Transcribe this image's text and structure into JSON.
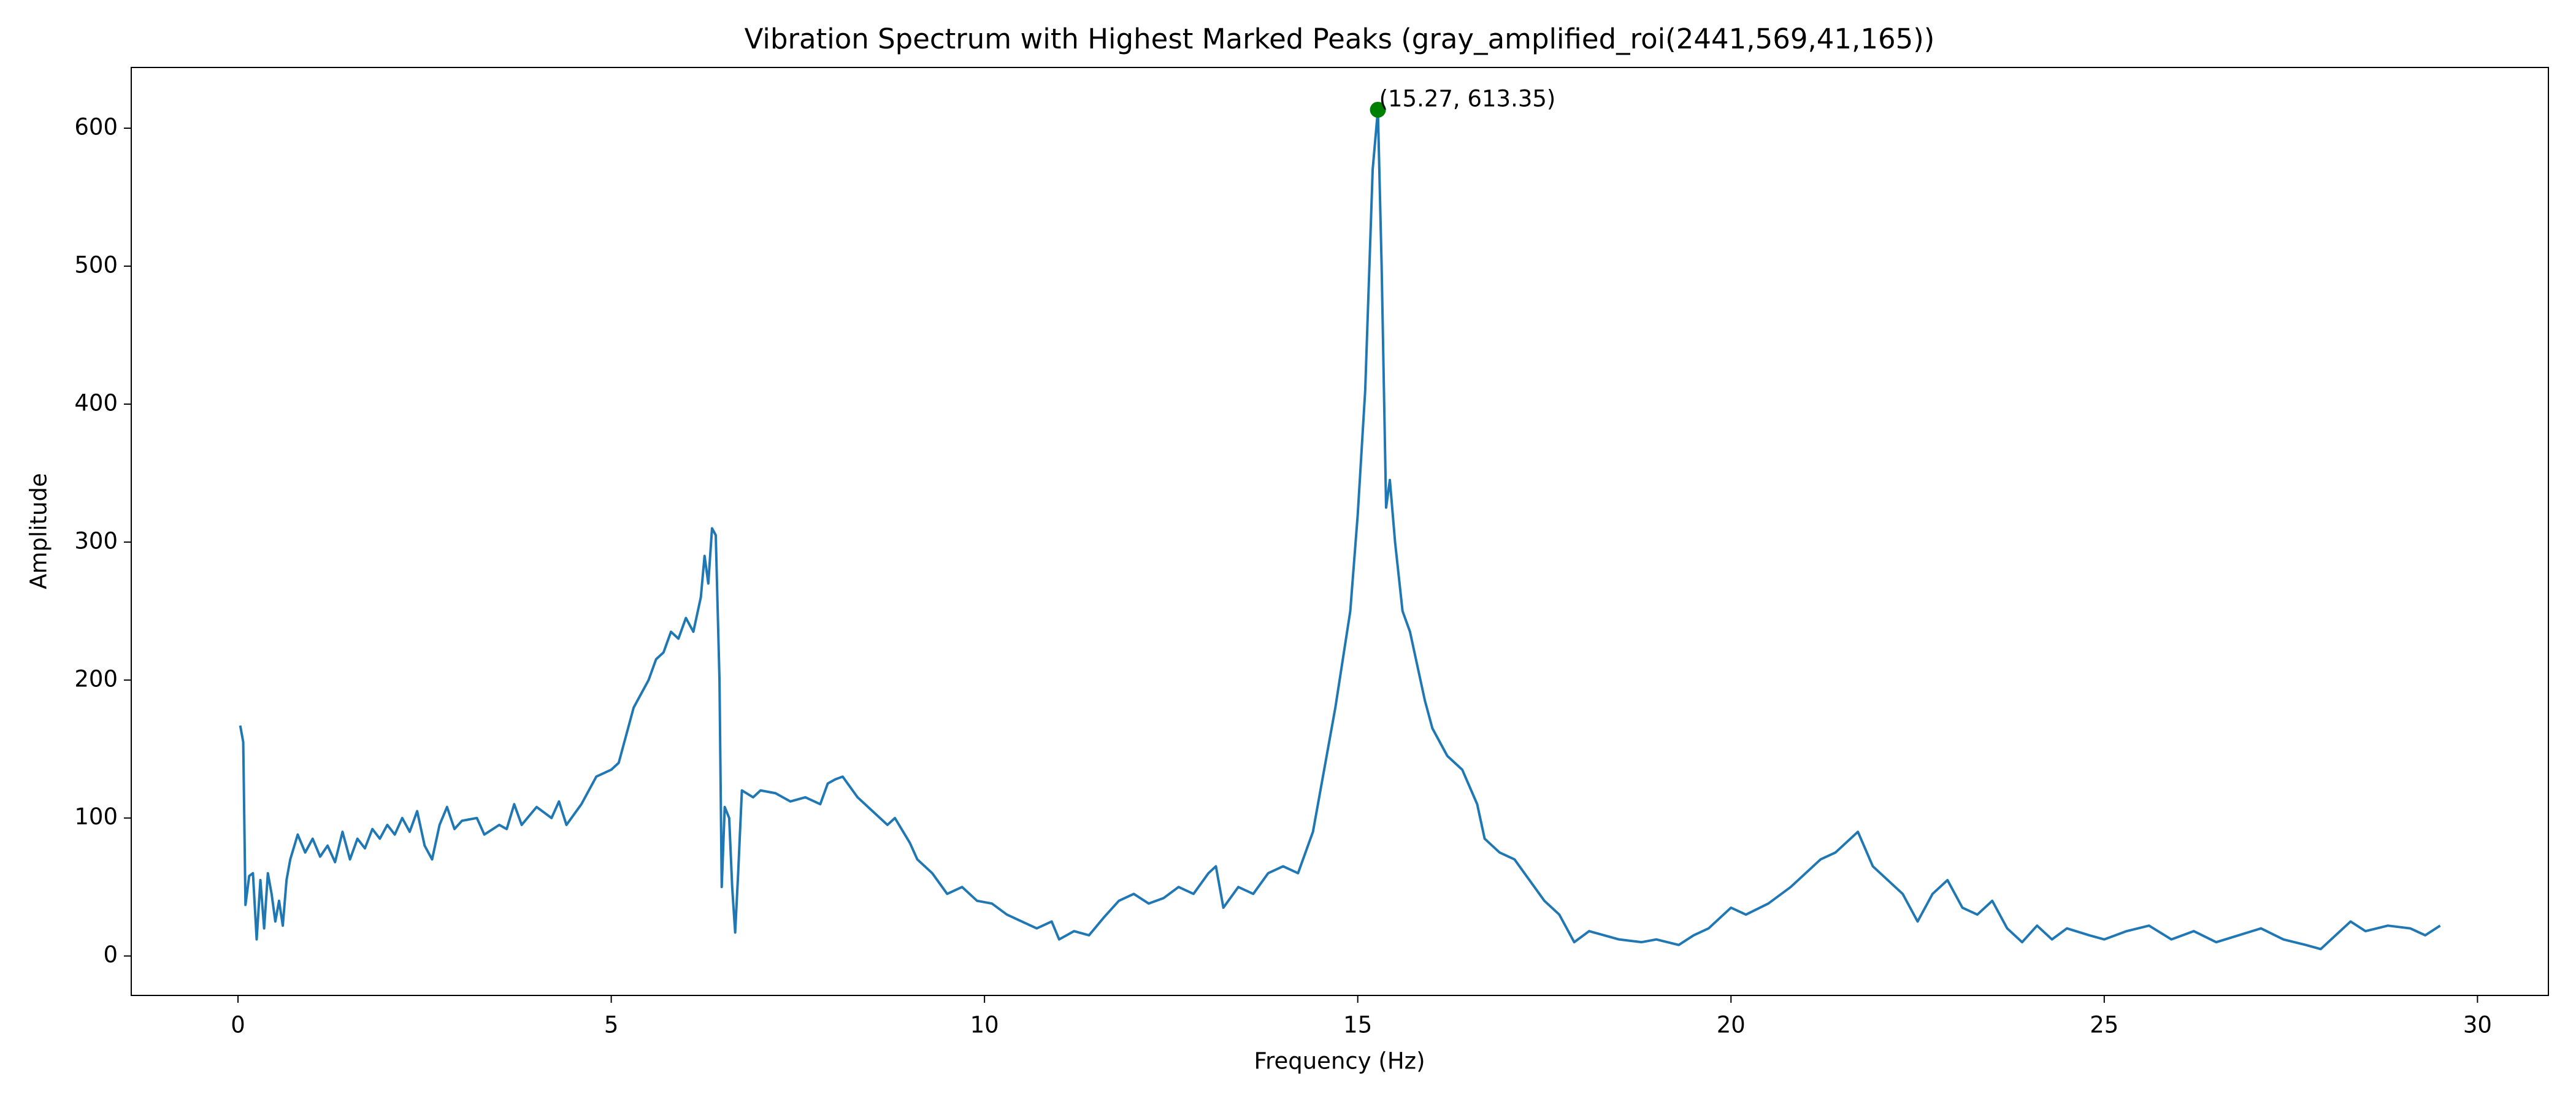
{
  "chart_data": {
    "type": "line",
    "title": "Vibration Spectrum with Highest Marked Peaks (gray_amplified_roi(2441,569,41,165))",
    "xlabel": "Frequency (Hz)",
    "ylabel": "Amplitude",
    "xlim": [
      -1.43,
      30.95
    ],
    "ylim": [
      -28.6,
      644
    ],
    "xticks": [
      0,
      5,
      10,
      15,
      20,
      25,
      30
    ],
    "yticks": [
      0,
      100,
      200,
      300,
      400,
      500,
      600
    ],
    "series": [
      {
        "color": "#1f77b4",
        "x": [
          0.03,
          0.07,
          0.1,
          0.15,
          0.2,
          0.25,
          0.3,
          0.35,
          0.4,
          0.45,
          0.5,
          0.55,
          0.6,
          0.65,
          0.7,
          0.8,
          0.9,
          1.0,
          1.1,
          1.2,
          1.3,
          1.4,
          1.5,
          1.6,
          1.7,
          1.8,
          1.9,
          2.0,
          2.1,
          2.2,
          2.3,
          2.4,
          2.5,
          2.6,
          2.7,
          2.8,
          2.9,
          3.0,
          3.2,
          3.3,
          3.5,
          3.6,
          3.7,
          3.8,
          4.0,
          4.2,
          4.3,
          4.4,
          4.6,
          4.7,
          4.8,
          5.0,
          5.1,
          5.2,
          5.3,
          5.4,
          5.5,
          5.6,
          5.7,
          5.8,
          5.9,
          6.0,
          6.1,
          6.2,
          6.25,
          6.3,
          6.35,
          6.4,
          6.45,
          6.48,
          6.52,
          6.58,
          6.62,
          6.66,
          6.7,
          6.75,
          6.9,
          7.0,
          7.2,
          7.4,
          7.6,
          7.8,
          7.9,
          8.0,
          8.1,
          8.3,
          8.5,
          8.7,
          8.8,
          9.0,
          9.1,
          9.3,
          9.5,
          9.7,
          9.9,
          10.1,
          10.3,
          10.5,
          10.7,
          10.9,
          11.0,
          11.2,
          11.4,
          11.6,
          11.8,
          12.0,
          12.2,
          12.4,
          12.6,
          12.8,
          13.0,
          13.1,
          13.2,
          13.4,
          13.6,
          13.8,
          14.0,
          14.2,
          14.3,
          14.4,
          14.5,
          14.6,
          14.7,
          14.8,
          14.9,
          15.0,
          15.1,
          15.2,
          15.27,
          15.32,
          15.38,
          15.43,
          15.5,
          15.6,
          15.7,
          15.8,
          15.9,
          16.0,
          16.2,
          16.4,
          16.6,
          16.7,
          16.9,
          17.1,
          17.3,
          17.5,
          17.7,
          17.9,
          18.1,
          18.3,
          18.5,
          18.8,
          19.0,
          19.3,
          19.5,
          19.7,
          20.0,
          20.2,
          20.5,
          20.8,
          21.0,
          21.2,
          21.4,
          21.6,
          21.7,
          21.9,
          22.1,
          22.3,
          22.5,
          22.7,
          22.9,
          23.1,
          23.3,
          23.5,
          23.7,
          23.9,
          24.1,
          24.3,
          24.5,
          24.8,
          25.0,
          25.3,
          25.6,
          25.9,
          26.2,
          26.5,
          26.8,
          27.1,
          27.4,
          27.7,
          27.9,
          28.1,
          28.3,
          28.5,
          28.8,
          29.1,
          29.3,
          29.5
        ],
        "values": [
          167,
          155,
          37,
          58,
          60,
          12,
          55,
          20,
          60,
          45,
          25,
          40,
          22,
          55,
          70,
          88,
          75,
          85,
          72,
          80,
          68,
          90,
          70,
          85,
          78,
          92,
          85,
          95,
          88,
          100,
          90,
          105,
          80,
          70,
          95,
          108,
          92,
          98,
          100,
          88,
          95,
          92,
          110,
          95,
          108,
          100,
          112,
          95,
          110,
          120,
          130,
          135,
          140,
          160,
          180,
          190,
          200,
          215,
          220,
          235,
          230,
          245,
          235,
          260,
          290,
          270,
          310,
          305,
          200,
          50,
          108,
          100,
          50,
          17,
          60,
          120,
          115,
          120,
          118,
          112,
          115,
          110,
          125,
          128,
          130,
          115,
          105,
          95,
          100,
          82,
          70,
          60,
          45,
          50,
          40,
          38,
          30,
          25,
          20,
          25,
          12,
          18,
          15,
          28,
          40,
          45,
          38,
          42,
          50,
          45,
          60,
          65,
          35,
          50,
          45,
          60,
          65,
          60,
          75,
          90,
          120,
          150,
          180,
          215,
          250,
          320,
          410,
          570,
          613.35,
          500,
          325,
          345,
          300,
          250,
          235,
          210,
          185,
          165,
          145,
          135,
          110,
          85,
          75,
          70,
          55,
          40,
          30,
          10,
          18,
          15,
          12,
          10,
          12,
          8,
          15,
          20,
          35,
          30,
          38,
          50,
          60,
          70,
          75,
          85,
          90,
          65,
          55,
          45,
          25,
          45,
          55,
          35,
          30,
          40,
          20,
          10,
          22,
          12,
          20,
          15,
          12,
          18,
          22,
          12,
          18,
          10,
          15,
          20,
          12,
          8,
          5,
          15,
          25,
          18,
          22,
          20,
          15,
          22
        ]
      }
    ],
    "peaks": {
      "color": "#008000",
      "x": [
        15.27
      ],
      "values": [
        613.35
      ],
      "value_labels": [
        "(15.27, 613.35)"
      ]
    }
  }
}
